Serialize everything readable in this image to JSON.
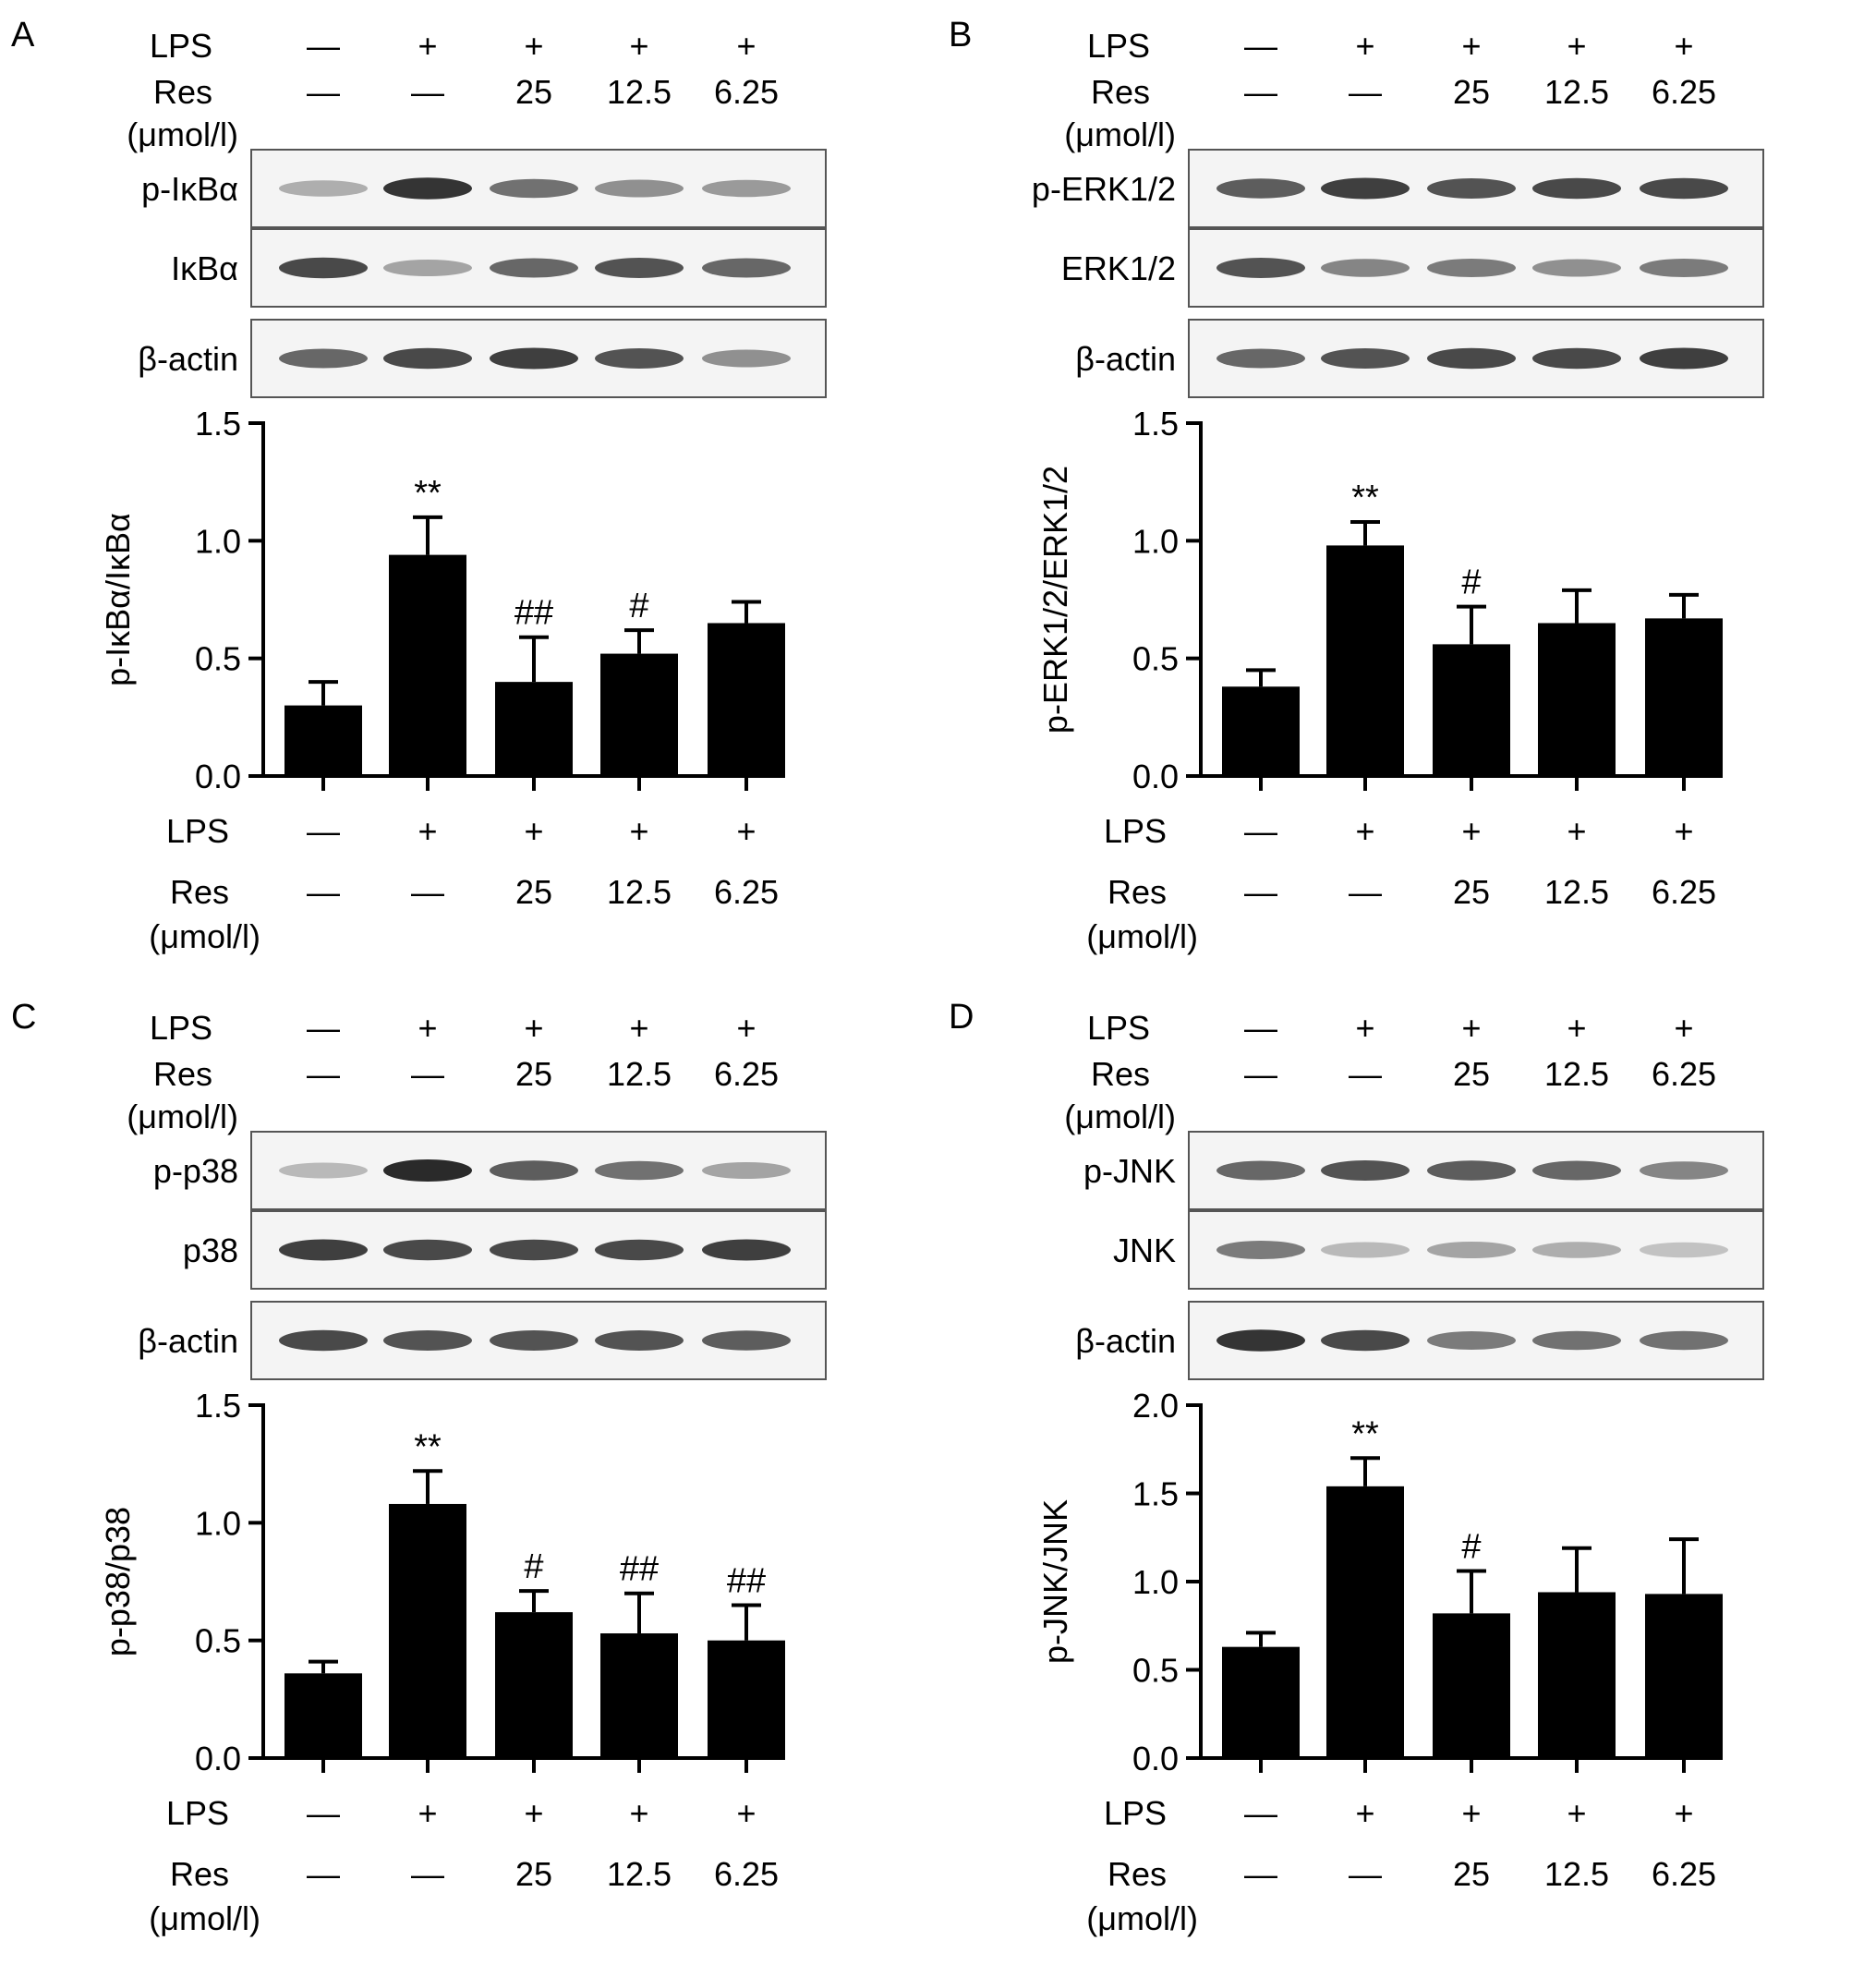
{
  "labels": {
    "lps": "LPS",
    "res": "Res",
    "unit": "(μmol/l)",
    "minus": "—",
    "plus": "+",
    "doses": [
      "25",
      "12.5",
      "6.25"
    ]
  },
  "panels": [
    {
      "id": "A",
      "letter": "A",
      "blots": [
        "p-IκBα",
        "IκBα",
        "β-actin"
      ],
      "band_intensity": [
        [
          0.35,
          0.95,
          0.65,
          0.5,
          0.45
        ],
        [
          0.85,
          0.4,
          0.7,
          0.8,
          0.7
        ],
        [
          0.7,
          0.85,
          0.9,
          0.8,
          0.5
        ]
      ]
    },
    {
      "id": "B",
      "letter": "B",
      "blots": [
        "p-ERK1/2",
        "ERK1/2",
        "β-actin"
      ],
      "band_intensity": [
        [
          0.75,
          0.9,
          0.8,
          0.85,
          0.85
        ],
        [
          0.8,
          0.55,
          0.6,
          0.5,
          0.6
        ],
        [
          0.7,
          0.8,
          0.85,
          0.85,
          0.9
        ]
      ]
    },
    {
      "id": "C",
      "letter": "C",
      "blots": [
        "p-p38",
        "p38",
        "β-actin"
      ],
      "band_intensity": [
        [
          0.3,
          1.0,
          0.75,
          0.65,
          0.4
        ],
        [
          0.9,
          0.85,
          0.85,
          0.85,
          0.9
        ],
        [
          0.85,
          0.8,
          0.8,
          0.8,
          0.75
        ]
      ]
    },
    {
      "id": "D",
      "letter": "D",
      "blots": [
        "p-JNK",
        "JNK",
        "β-actin"
      ],
      "band_intensity": [
        [
          0.7,
          0.8,
          0.75,
          0.7,
          0.55
        ],
        [
          0.6,
          0.3,
          0.4,
          0.35,
          0.25
        ],
        [
          0.95,
          0.85,
          0.6,
          0.65,
          0.65
        ]
      ]
    }
  ],
  "chart_data": [
    {
      "type": "bar",
      "panel": "A",
      "ylabel": "p-IκBα/IκBα",
      "ylim": [
        0,
        1.5
      ],
      "yticks": [
        "0.0",
        "0.5",
        "1.0",
        "1.5"
      ],
      "values": [
        0.3,
        0.94,
        0.4,
        0.52,
        0.65
      ],
      "errors": [
        0.1,
        0.16,
        0.19,
        0.1,
        0.09
      ],
      "annotations": [
        "",
        "**",
        "##",
        "#",
        ""
      ]
    },
    {
      "type": "bar",
      "panel": "B",
      "ylabel": "p-ERK1/2/ERK1/2",
      "ylim": [
        0,
        1.5
      ],
      "yticks": [
        "0.0",
        "0.5",
        "1.0",
        "1.5"
      ],
      "values": [
        0.38,
        0.98,
        0.56,
        0.65,
        0.67
      ],
      "errors": [
        0.07,
        0.1,
        0.16,
        0.14,
        0.1
      ],
      "annotations": [
        "",
        "**",
        "#",
        "",
        ""
      ]
    },
    {
      "type": "bar",
      "panel": "C",
      "ylabel": "p-p38/p38",
      "ylim": [
        0,
        1.5
      ],
      "yticks": [
        "0.0",
        "0.5",
        "1.0",
        "1.5"
      ],
      "values": [
        0.36,
        1.08,
        0.62,
        0.53,
        0.5
      ],
      "errors": [
        0.05,
        0.14,
        0.09,
        0.17,
        0.15
      ],
      "annotations": [
        "",
        "**",
        "#",
        "##",
        "##"
      ]
    },
    {
      "type": "bar",
      "panel": "D",
      "ylabel": "p-JNK/JNK",
      "ylim": [
        0,
        2.0
      ],
      "yticks": [
        "0.0",
        "0.5",
        "1.0",
        "1.5",
        "2.0"
      ],
      "values": [
        0.63,
        1.54,
        0.82,
        0.94,
        0.93
      ],
      "errors": [
        0.08,
        0.16,
        0.24,
        0.25,
        0.31
      ],
      "annotations": [
        "",
        "**",
        "#",
        "",
        ""
      ]
    }
  ]
}
